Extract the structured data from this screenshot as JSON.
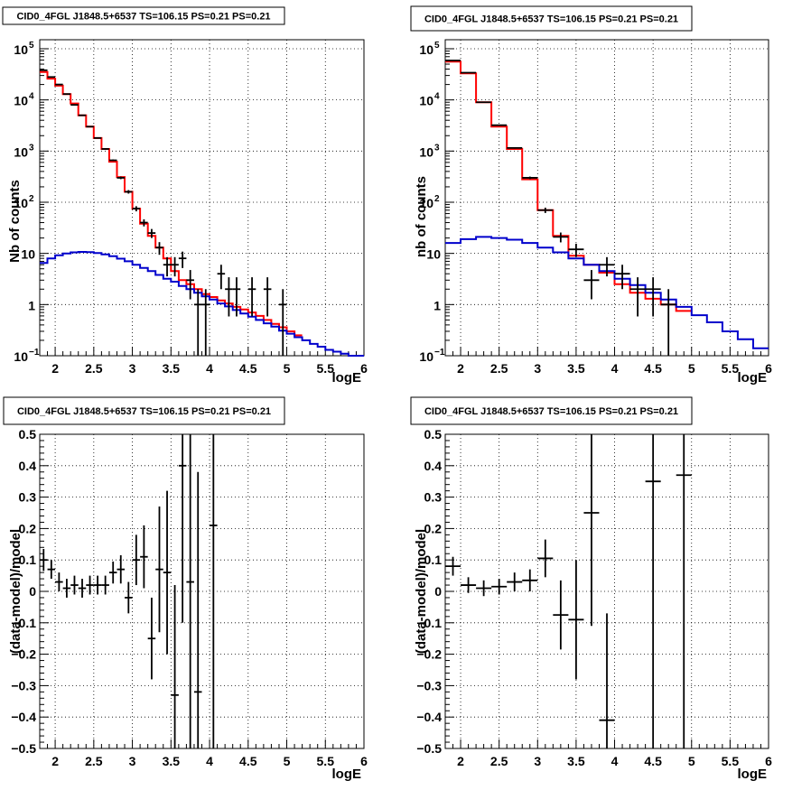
{
  "chart_data": [
    {
      "type": "histogram",
      "title": "CID0_4FGL J1848.5+6537 TS=106.15 PS=0.21 PS=0.21",
      "xlabel": "logE",
      "ylabel": "Nb of counts",
      "xlim": [
        1.8,
        6.0
      ],
      "ylim": [
        0.1,
        150000
      ],
      "yscale": "log",
      "grid": true,
      "xticks": [
        "2",
        "2.5",
        "3",
        "3.5",
        "4",
        "4.5",
        "5",
        "5.5",
        "6"
      ],
      "yticks": [
        {
          "value": 0.1,
          "label": "10",
          "exp": "−1"
        },
        {
          "value": 1,
          "label": "1"
        },
        {
          "value": 10,
          "label": "10"
        },
        {
          "value": 100,
          "label": "10",
          "exp": "2"
        },
        {
          "value": 1000,
          "label": "10",
          "exp": "3"
        },
        {
          "value": 10000,
          "label": "10",
          "exp": "4"
        },
        {
          "value": 100000,
          "label": "10",
          "exp": "5"
        }
      ],
      "series": [
        {
          "kind": "step",
          "color": "#ff0000",
          "edges": [
            1.8,
            1.9,
            2.0,
            2.1,
            2.2,
            2.3,
            2.4,
            2.5,
            2.6,
            2.7,
            2.8,
            2.9,
            3.0,
            3.1,
            3.2,
            3.3,
            3.4,
            3.5,
            3.6,
            3.7,
            3.8,
            3.9,
            4.0,
            4.1,
            4.2,
            4.3,
            4.4,
            4.5,
            4.6,
            4.7,
            4.8,
            4.9,
            5.0,
            5.1,
            5.2
          ],
          "values": [
            35000,
            26000,
            19000,
            13000,
            8500,
            5000,
            3000,
            1800,
            1100,
            620,
            310,
            160,
            75,
            38,
            22,
            13,
            8,
            4.5,
            3,
            2.5,
            2,
            1.6,
            1.4,
            1.2,
            1.05,
            0.9,
            0.8,
            0.7,
            0.6,
            0.5,
            0.42,
            0.36,
            0.3,
            0.25
          ]
        },
        {
          "kind": "step",
          "color": "#0000cc",
          "edges": [
            1.8,
            1.9,
            2.0,
            2.1,
            2.2,
            2.3,
            2.4,
            2.5,
            2.6,
            2.7,
            2.8,
            2.9,
            3.0,
            3.1,
            3.2,
            3.3,
            3.4,
            3.5,
            3.6,
            3.7,
            3.8,
            3.9,
            4.0,
            4.1,
            4.2,
            4.3,
            4.4,
            4.5,
            4.6,
            4.7,
            4.8,
            4.9,
            5.0,
            5.1,
            5.2,
            5.3,
            5.4,
            5.5,
            5.6,
            5.7,
            5.8,
            5.9,
            6.0
          ],
          "values": [
            6.5,
            8.0,
            9.2,
            10.0,
            10.5,
            10.7,
            10.6,
            10.2,
            9.6,
            8.8,
            7.9,
            7.0,
            6.0,
            5.2,
            4.5,
            3.8,
            3.2,
            2.8,
            2.3,
            2.0,
            1.7,
            1.45,
            1.25,
            1.05,
            0.92,
            0.78,
            0.67,
            0.58,
            0.5,
            0.43,
            0.37,
            0.31,
            0.27,
            0.23,
            0.2,
            0.17,
            0.15,
            0.13,
            0.12,
            0.11,
            0.1,
            0.1
          ]
        },
        {
          "kind": "points",
          "color": "#000000",
          "xerr": 0.05,
          "points": [
            {
              "x": 1.85,
              "y": 38000
            },
            {
              "x": 1.95,
              "y": 28000
            },
            {
              "x": 2.05,
              "y": 20000
            },
            {
              "x": 2.15,
              "y": 13000
            },
            {
              "x": 2.25,
              "y": 8000
            },
            {
              "x": 2.35,
              "y": 5000
            },
            {
              "x": 2.45,
              "y": 3000
            },
            {
              "x": 2.55,
              "y": 1800
            },
            {
              "x": 2.65,
              "y": 1100
            },
            {
              "x": 2.75,
              "y": 660
            },
            {
              "x": 2.85,
              "y": 300
            },
            {
              "x": 2.95,
              "y": 160
            },
            {
              "x": 3.05,
              "y": 75
            },
            {
              "x": 3.15,
              "y": 40
            },
            {
              "x": 3.25,
              "y": 25
            },
            {
              "x": 3.35,
              "y": 13
            },
            {
              "x": 3.45,
              "y": 6
            },
            {
              "x": 3.55,
              "y": 6
            },
            {
              "x": 3.65,
              "y": 8
            },
            {
              "x": 3.75,
              "y": 3
            },
            {
              "x": 3.85,
              "y": 1
            },
            {
              "x": 3.95,
              "y": 1
            },
            {
              "x": 4.15,
              "y": 4
            },
            {
              "x": 4.25,
              "y": 2
            },
            {
              "x": 4.35,
              "y": 2
            },
            {
              "x": 4.55,
              "y": 2
            },
            {
              "x": 4.75,
              "y": 2
            },
            {
              "x": 4.95,
              "y": 1
            }
          ]
        }
      ]
    },
    {
      "type": "histogram",
      "title": "CID0_4FGL J1848.5+6537 TS=106.15 PS=0.21 PS=0.21",
      "xlabel": "logE",
      "ylabel": "nb of counts",
      "xlim": [
        1.8,
        6.0
      ],
      "ylim": [
        0.1,
        150000
      ],
      "yscale": "log",
      "grid": true,
      "xticks": [
        "2",
        "2.5",
        "3",
        "3.5",
        "4",
        "4.5",
        "5",
        "5.5",
        "6"
      ],
      "yticks": [
        {
          "value": 0.1,
          "label": "10",
          "exp": "−1"
        },
        {
          "value": 1,
          "label": "1"
        },
        {
          "value": 10,
          "label": "10"
        },
        {
          "value": 100,
          "label": "10",
          "exp": "2"
        },
        {
          "value": 1000,
          "label": "10",
          "exp": "3"
        },
        {
          "value": 10000,
          "label": "10",
          "exp": "4"
        },
        {
          "value": 100000,
          "label": "10",
          "exp": "5"
        }
      ],
      "series": [
        {
          "kind": "step",
          "color": "#ff0000",
          "edges": [
            1.8,
            2.0,
            2.2,
            2.4,
            2.6,
            2.8,
            3.0,
            3.2,
            3.4,
            3.6,
            3.8,
            4.0,
            4.2,
            4.4,
            4.6,
            4.8,
            5.0
          ],
          "values": [
            56000,
            33000,
            9000,
            3000,
            1100,
            280,
            70,
            22,
            9,
            6,
            4.2,
            2.5,
            1.7,
            1.3,
            1.0,
            0.75
          ]
        },
        {
          "kind": "step",
          "color": "#0000cc",
          "edges": [
            1.8,
            2.0,
            2.2,
            2.4,
            2.6,
            2.8,
            3.0,
            3.2,
            3.4,
            3.6,
            3.8,
            4.0,
            4.2,
            4.4,
            4.6,
            4.8,
            5.0,
            5.2,
            5.4,
            5.6,
            5.8,
            6.0
          ],
          "values": [
            16,
            19,
            21,
            20,
            18.5,
            16,
            13,
            10.5,
            8,
            6,
            4.5,
            3.2,
            2.4,
            1.7,
            1.25,
            0.9,
            0.62,
            0.45,
            0.3,
            0.21,
            0.14
          ]
        },
        {
          "kind": "points",
          "color": "#000000",
          "xerr": 0.1,
          "points": [
            {
              "x": 1.9,
              "y": 59000
            },
            {
              "x": 2.1,
              "y": 34000
            },
            {
              "x": 2.3,
              "y": 9000
            },
            {
              "x": 2.5,
              "y": 3200
            },
            {
              "x": 2.7,
              "y": 1150
            },
            {
              "x": 2.9,
              "y": 300
            },
            {
              "x": 3.1,
              "y": 70
            },
            {
              "x": 3.3,
              "y": 21
            },
            {
              "x": 3.5,
              "y": 12
            },
            {
              "x": 3.7,
              "y": 3
            },
            {
              "x": 3.9,
              "y": 6
            },
            {
              "x": 4.1,
              "y": 4
            },
            {
              "x": 4.3,
              "y": 2
            },
            {
              "x": 4.5,
              "y": 2
            },
            {
              "x": 4.7,
              "y": 1
            }
          ]
        }
      ]
    },
    {
      "type": "scatter",
      "title": "CID0_4FGL J1848.5+6537 TS=106.15 PS=0.21 PS=0.21",
      "xlabel": "logE",
      "ylabel": "(data-model)/model",
      "xlim": [
        1.8,
        6.0
      ],
      "ylim": [
        -0.5,
        0.5
      ],
      "yscale": "linear",
      "grid": true,
      "xticks": [
        "2",
        "2.5",
        "3",
        "3.5",
        "4",
        "4.5",
        "5",
        "5.5",
        "6"
      ],
      "yticks": [
        "−0.5",
        "−0.4",
        "−0.3",
        "−0.2",
        "−0.1",
        "0",
        "0.1",
        "0.2",
        "0.3",
        "0.4",
        "0.5"
      ],
      "series": [
        {
          "kind": "errorbars",
          "color": "#000000",
          "xerr": 0.05,
          "points": [
            {
              "x": 1.85,
              "y": 0.1,
              "err": 0.035
            },
            {
              "x": 1.95,
              "y": 0.07,
              "err": 0.03
            },
            {
              "x": 2.05,
              "y": 0.03,
              "err": 0.03
            },
            {
              "x": 2.15,
              "y": 0.01,
              "err": 0.03
            },
            {
              "x": 2.25,
              "y": 0.02,
              "err": 0.03
            },
            {
              "x": 2.35,
              "y": 0.01,
              "err": 0.03
            },
            {
              "x": 2.45,
              "y": 0.02,
              "err": 0.03
            },
            {
              "x": 2.55,
              "y": 0.02,
              "err": 0.03
            },
            {
              "x": 2.65,
              "y": 0.02,
              "err": 0.03
            },
            {
              "x": 2.75,
              "y": 0.06,
              "err": 0.035
            },
            {
              "x": 2.85,
              "y": 0.07,
              "err": 0.045
            },
            {
              "x": 2.95,
              "y": -0.02,
              "err": 0.05
            },
            {
              "x": 3.05,
              "y": 0.1,
              "err": 0.08
            },
            {
              "x": 3.15,
              "y": 0.11,
              "err": 0.1
            },
            {
              "x": 3.25,
              "y": -0.15,
              "err": 0.13
            },
            {
              "x": 3.35,
              "y": 0.07,
              "err": 0.2
            },
            {
              "x": 3.45,
              "y": 0.06,
              "err": 0.26
            },
            {
              "x": 3.55,
              "y": -0.33,
              "err": 0.35
            },
            {
              "x": 3.65,
              "y": 0.4,
              "err": 0.5
            },
            {
              "x": 3.75,
              "y": 0.03,
              "err": 0.6
            },
            {
              "x": 3.85,
              "y": -0.32,
              "err": 0.7
            },
            {
              "x": 4.05,
              "y": 0.21,
              "err": 1.0
            }
          ]
        }
      ]
    },
    {
      "type": "scatter",
      "title": "CID0_4FGL J1848.5+6537 TS=106.15 PS=0.21 PS=0.21",
      "xlabel": "logE",
      "ylabel": "(data-model)/model",
      "xlim": [
        1.8,
        6.0
      ],
      "ylim": [
        -0.5,
        0.5
      ],
      "yscale": "linear",
      "grid": true,
      "xticks": [
        "2",
        "2.5",
        "3",
        "3.5",
        "4",
        "4.5",
        "5",
        "5.5",
        "6"
      ],
      "yticks": [
        "−0.5",
        "−0.4",
        "−0.3",
        "−0.2",
        "−0.1",
        "0",
        "0.1",
        "0.2",
        "0.3",
        "0.4",
        "0.5"
      ],
      "series": [
        {
          "kind": "errorbars",
          "color": "#000000",
          "xerr": 0.1,
          "points": [
            {
              "x": 1.9,
              "y": 0.08,
              "err": 0.03
            },
            {
              "x": 2.1,
              "y": 0.02,
              "err": 0.025
            },
            {
              "x": 2.3,
              "y": 0.01,
              "err": 0.025
            },
            {
              "x": 2.5,
              "y": 0.015,
              "err": 0.025
            },
            {
              "x": 2.7,
              "y": 0.03,
              "err": 0.03
            },
            {
              "x": 2.9,
              "y": 0.035,
              "err": 0.035
            },
            {
              "x": 3.1,
              "y": 0.105,
              "err": 0.06
            },
            {
              "x": 3.3,
              "y": -0.075,
              "err": 0.11
            },
            {
              "x": 3.5,
              "y": -0.09,
              "err": 0.19
            },
            {
              "x": 3.7,
              "y": 0.25,
              "err": 0.36
            },
            {
              "x": 3.9,
              "y": -0.41,
              "err": 0.34
            },
            {
              "x": 4.5,
              "y": 0.35,
              "err": 1.0
            },
            {
              "x": 4.9,
              "y": 0.37,
              "err": 1.0
            }
          ]
        }
      ]
    }
  ]
}
